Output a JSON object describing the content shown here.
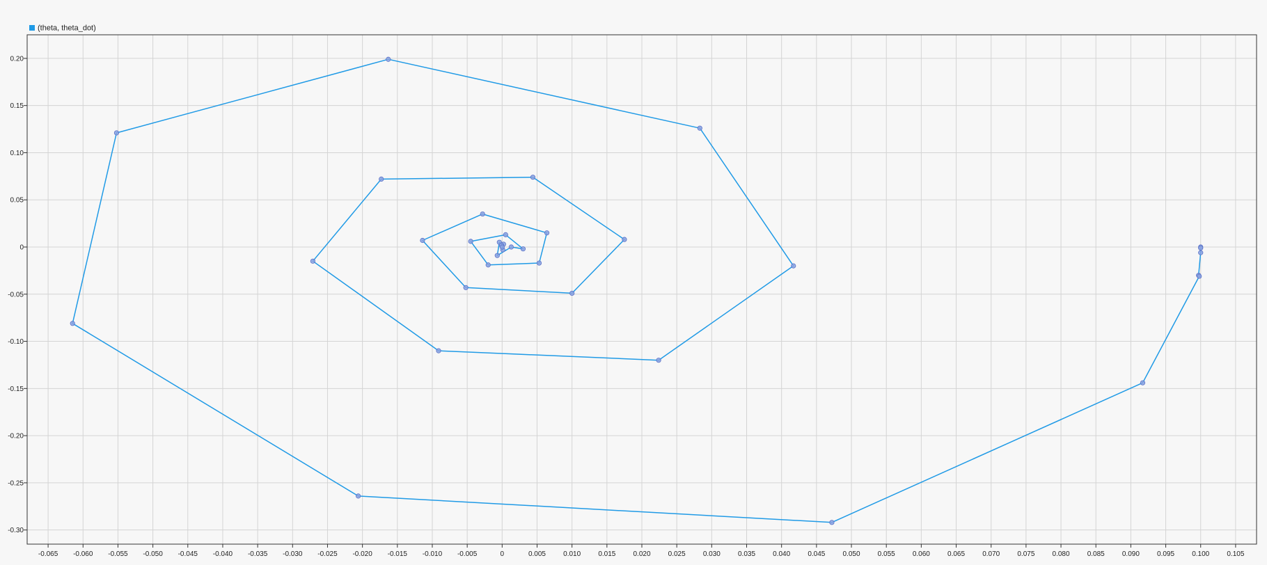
{
  "chart_data": {
    "type": "scatter",
    "title": "",
    "xlabel": "",
    "ylabel": "",
    "xlim": [
      -0.068,
      0.108
    ],
    "ylim": [
      -0.315,
      0.225
    ],
    "x_ticks": [
      -0.065,
      -0.06,
      -0.055,
      -0.05,
      -0.045,
      -0.04,
      -0.035,
      -0.03,
      -0.025,
      -0.02,
      -0.015,
      -0.01,
      -0.005,
      0,
      0.005,
      0.01,
      0.015,
      0.02,
      0.025,
      0.03,
      0.035,
      0.04,
      0.045,
      0.05,
      0.055,
      0.06,
      0.065,
      0.07,
      0.075,
      0.08,
      0.085,
      0.09,
      0.095,
      0.1,
      0.105
    ],
    "x_tick_labels": [
      "-0.065",
      "-0.060",
      "-0.055",
      "-0.050",
      "-0.045",
      "-0.040",
      "-0.035",
      "-0.030",
      "-0.025",
      "-0.020",
      "-0.015",
      "-0.010",
      "-0.005",
      "0",
      "0.005",
      "0.010",
      "0.015",
      "0.020",
      "0.025",
      "0.030",
      "0.035",
      "0.040",
      "0.045",
      "0.050",
      "0.055",
      "0.060",
      "0.065",
      "0.070",
      "0.075",
      "0.080",
      "0.085",
      "0.090",
      "0.095",
      "0.100",
      "0.105"
    ],
    "y_ticks": [
      0.2,
      0.15,
      0.1,
      0.05,
      0,
      -0.05,
      -0.1,
      -0.15,
      -0.2,
      -0.25,
      -0.3
    ],
    "y_tick_labels": [
      "0.20",
      "0.15",
      "0.10",
      "0.05",
      "0",
      "-0.05",
      "-0.10",
      "-0.15",
      "-0.20",
      "-0.25",
      "-0.30"
    ],
    "grid": true,
    "legend_position": "top-left",
    "series": [
      {
        "name": "(theta, theta_dot)",
        "color": "#1f9ae6",
        "marker_fill": "#8aa2e0",
        "marker_stroke": "#5a72c8",
        "mode": "lines+markers",
        "x": [
          0.1,
          0.1,
          0.1,
          0.0997,
          0.0998,
          0.0917,
          0.0472,
          -0.0206,
          -0.0615,
          -0.0552,
          -0.0163,
          0.0283,
          0.0417,
          0.0224,
          -0.0091,
          -0.0271,
          -0.0173,
          0.0044,
          0.0175,
          0.01,
          -0.0052,
          -0.0114,
          -0.0028,
          0.0064,
          0.0053,
          -0.002,
          -0.0045,
          0.0005,
          0.003,
          0.0013,
          -0.0007,
          -0.0004,
          0.0002,
          0.0001,
          -0.0001,
          0
        ],
        "y": [
          0.0,
          -0.001,
          -0.006,
          -0.03,
          -0.031,
          -0.144,
          -0.292,
          -0.264,
          -0.081,
          0.121,
          0.199,
          0.126,
          -0.02,
          -0.12,
          -0.11,
          -0.015,
          0.072,
          0.074,
          0.008,
          -0.049,
          -0.043,
          0.007,
          0.035,
          0.015,
          -0.017,
          -0.019,
          0.006,
          0.013,
          -0.002,
          0.0,
          -0.009,
          0.005,
          0.003,
          -0.003,
          0.002,
          0.0
        ]
      }
    ]
  }
}
